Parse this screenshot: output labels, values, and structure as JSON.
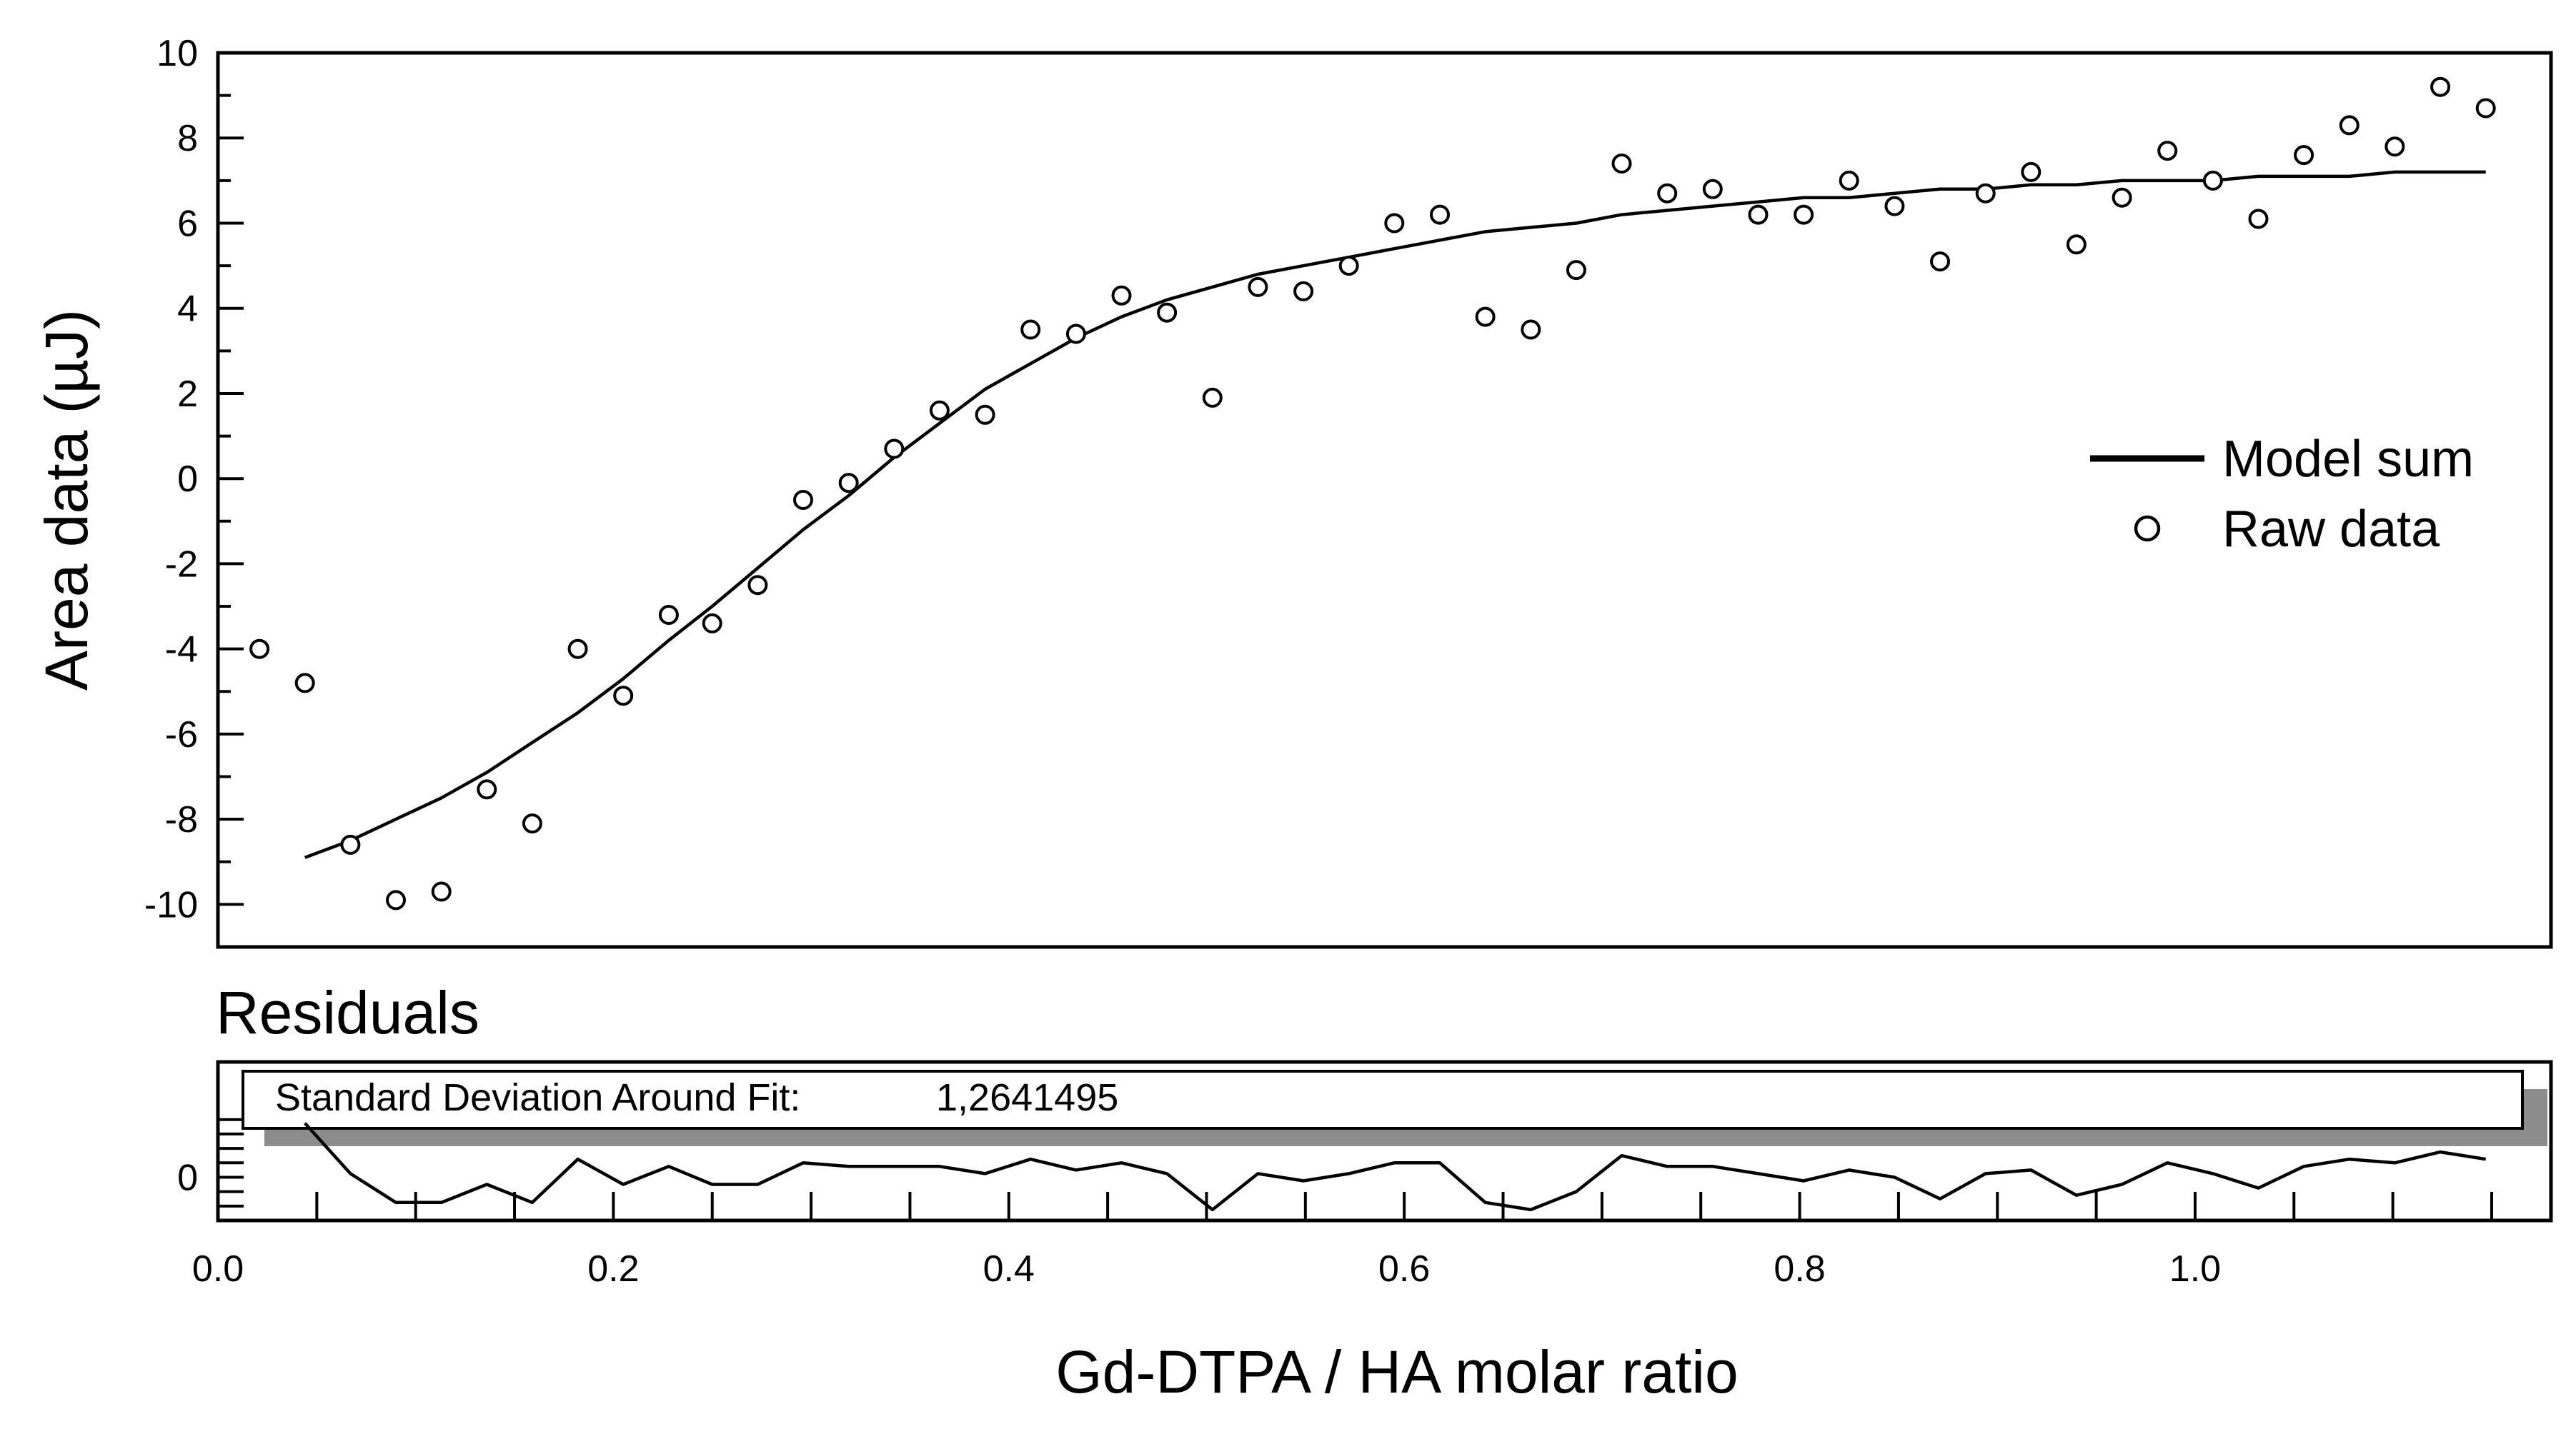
{
  "chart_data": [
    {
      "type": "scatter",
      "panel": "main",
      "title": "",
      "xlabel": "Gd-DTPA / HA molar ratio",
      "ylabel": "Area data (µJ)",
      "xlim": [
        0.0,
        1.18
      ],
      "ylim": [
        -11,
        10
      ],
      "yticks": [
        10,
        8,
        6,
        4,
        2,
        0,
        -2,
        -4,
        -6,
        -8,
        -10
      ],
      "ytick_labels": [
        "10",
        "8",
        "6",
        "4",
        "2",
        "0",
        "-2",
        "-4",
        "-6",
        "-8",
        "-10"
      ],
      "legend": {
        "placement": "right",
        "entries": [
          {
            "label": "Model sum",
            "marker": "line"
          },
          {
            "label": "Raw data",
            "marker": "open-circle"
          }
        ]
      },
      "series": [
        {
          "name": "Raw data",
          "kind": "points",
          "x": [
            0.021,
            0.044,
            0.067,
            0.09,
            0.113,
            0.136,
            0.159,
            0.182,
            0.205,
            0.228,
            0.25,
            0.273,
            0.296,
            0.319,
            0.342,
            0.365,
            0.388,
            0.411,
            0.434,
            0.457,
            0.48,
            0.503,
            0.526,
            0.549,
            0.572,
            0.595,
            0.618,
            0.641,
            0.664,
            0.687,
            0.71,
            0.733,
            0.756,
            0.779,
            0.802,
            0.825,
            0.848,
            0.871,
            0.894,
            0.917,
            0.94,
            0.963,
            0.986,
            1.009,
            1.032,
            1.055,
            1.078,
            1.101,
            1.124,
            1.147
          ],
          "y": [
            -4.0,
            -4.8,
            -8.6,
            -9.9,
            -9.7,
            -7.3,
            -8.1,
            -4.0,
            -5.1,
            -3.2,
            -3.4,
            -2.5,
            -0.5,
            -0.1,
            0.7,
            1.6,
            1.5,
            3.5,
            3.4,
            4.3,
            3.9,
            1.9,
            4.5,
            4.4,
            5.0,
            6.0,
            6.2,
            3.8,
            3.5,
            4.9,
            7.4,
            6.7,
            6.8,
            6.2,
            6.2,
            7.0,
            6.4,
            5.1,
            6.7,
            7.2,
            5.5,
            6.6,
            7.7,
            7.0,
            6.1,
            7.6,
            8.3,
            7.8,
            9.2,
            8.7
          ]
        },
        {
          "name": "Model sum",
          "kind": "line",
          "x": [
            0.044,
            0.067,
            0.09,
            0.113,
            0.136,
            0.159,
            0.182,
            0.205,
            0.228,
            0.25,
            0.273,
            0.296,
            0.319,
            0.342,
            0.365,
            0.388,
            0.411,
            0.434,
            0.457,
            0.48,
            0.503,
            0.526,
            0.549,
            0.572,
            0.595,
            0.618,
            0.641,
            0.664,
            0.687,
            0.71,
            0.733,
            0.756,
            0.779,
            0.802,
            0.825,
            0.848,
            0.871,
            0.894,
            0.917,
            0.94,
            0.963,
            0.986,
            1.009,
            1.032,
            1.055,
            1.078,
            1.101,
            1.124,
            1.147
          ],
          "y": [
            -8.9,
            -8.5,
            -8.0,
            -7.5,
            -6.9,
            -6.2,
            -5.5,
            -4.7,
            -3.8,
            -3.0,
            -2.1,
            -1.2,
            -0.4,
            0.5,
            1.3,
            2.1,
            2.7,
            3.3,
            3.8,
            4.2,
            4.5,
            4.8,
            5.0,
            5.2,
            5.4,
            5.6,
            5.8,
            5.9,
            6.0,
            6.2,
            6.3,
            6.4,
            6.5,
            6.6,
            6.6,
            6.7,
            6.8,
            6.8,
            6.9,
            6.9,
            7.0,
            7.0,
            7.0,
            7.1,
            7.1,
            7.1,
            7.2,
            7.2,
            7.2
          ]
        }
      ]
    },
    {
      "type": "line",
      "panel": "residuals",
      "title": "Residuals",
      "xlim": [
        0.0,
        1.18
      ],
      "ylim": [
        -0.6,
        1.6
      ],
      "yticks": [
        0
      ],
      "ytick_labels": [
        "0"
      ],
      "xticks": [
        0.0,
        0.2,
        0.4,
        0.6,
        0.8,
        1.0
      ],
      "xtick_labels": [
        "0.0",
        "0.2",
        "0.4",
        "0.6",
        "0.8",
        "1.0"
      ],
      "annotation": {
        "label": "Standard Deviation Around Fit:",
        "value": "1,2641495"
      },
      "x": [
        0.044,
        0.067,
        0.09,
        0.113,
        0.136,
        0.159,
        0.182,
        0.205,
        0.228,
        0.25,
        0.273,
        0.296,
        0.319,
        0.342,
        0.365,
        0.388,
        0.411,
        0.434,
        0.457,
        0.48,
        0.503,
        0.526,
        0.549,
        0.572,
        0.595,
        0.618,
        0.641,
        0.664,
        0.687,
        0.71,
        0.733,
        0.756,
        0.779,
        0.802,
        0.825,
        0.848,
        0.871,
        0.894,
        0.917,
        0.94,
        0.963,
        0.986,
        1.009,
        1.032,
        1.055,
        1.078,
        1.101,
        1.124,
        1.147
      ],
      "y": [
        0.75,
        0.05,
        -0.35,
        -0.35,
        -0.1,
        -0.35,
        0.25,
        -0.1,
        0.15,
        -0.1,
        -0.1,
        0.2,
        0.15,
        0.15,
        0.15,
        0.05,
        0.25,
        0.1,
        0.2,
        0.05,
        -0.45,
        0.05,
        -0.05,
        0.05,
        0.2,
        0.2,
        -0.35,
        -0.45,
        -0.2,
        0.3,
        0.15,
        0.15,
        0.05,
        -0.05,
        0.1,
        0.0,
        -0.3,
        0.05,
        0.1,
        -0.25,
        -0.1,
        0.2,
        0.05,
        -0.15,
        0.15,
        0.25,
        0.2,
        0.35,
        0.25
      ]
    }
  ]
}
